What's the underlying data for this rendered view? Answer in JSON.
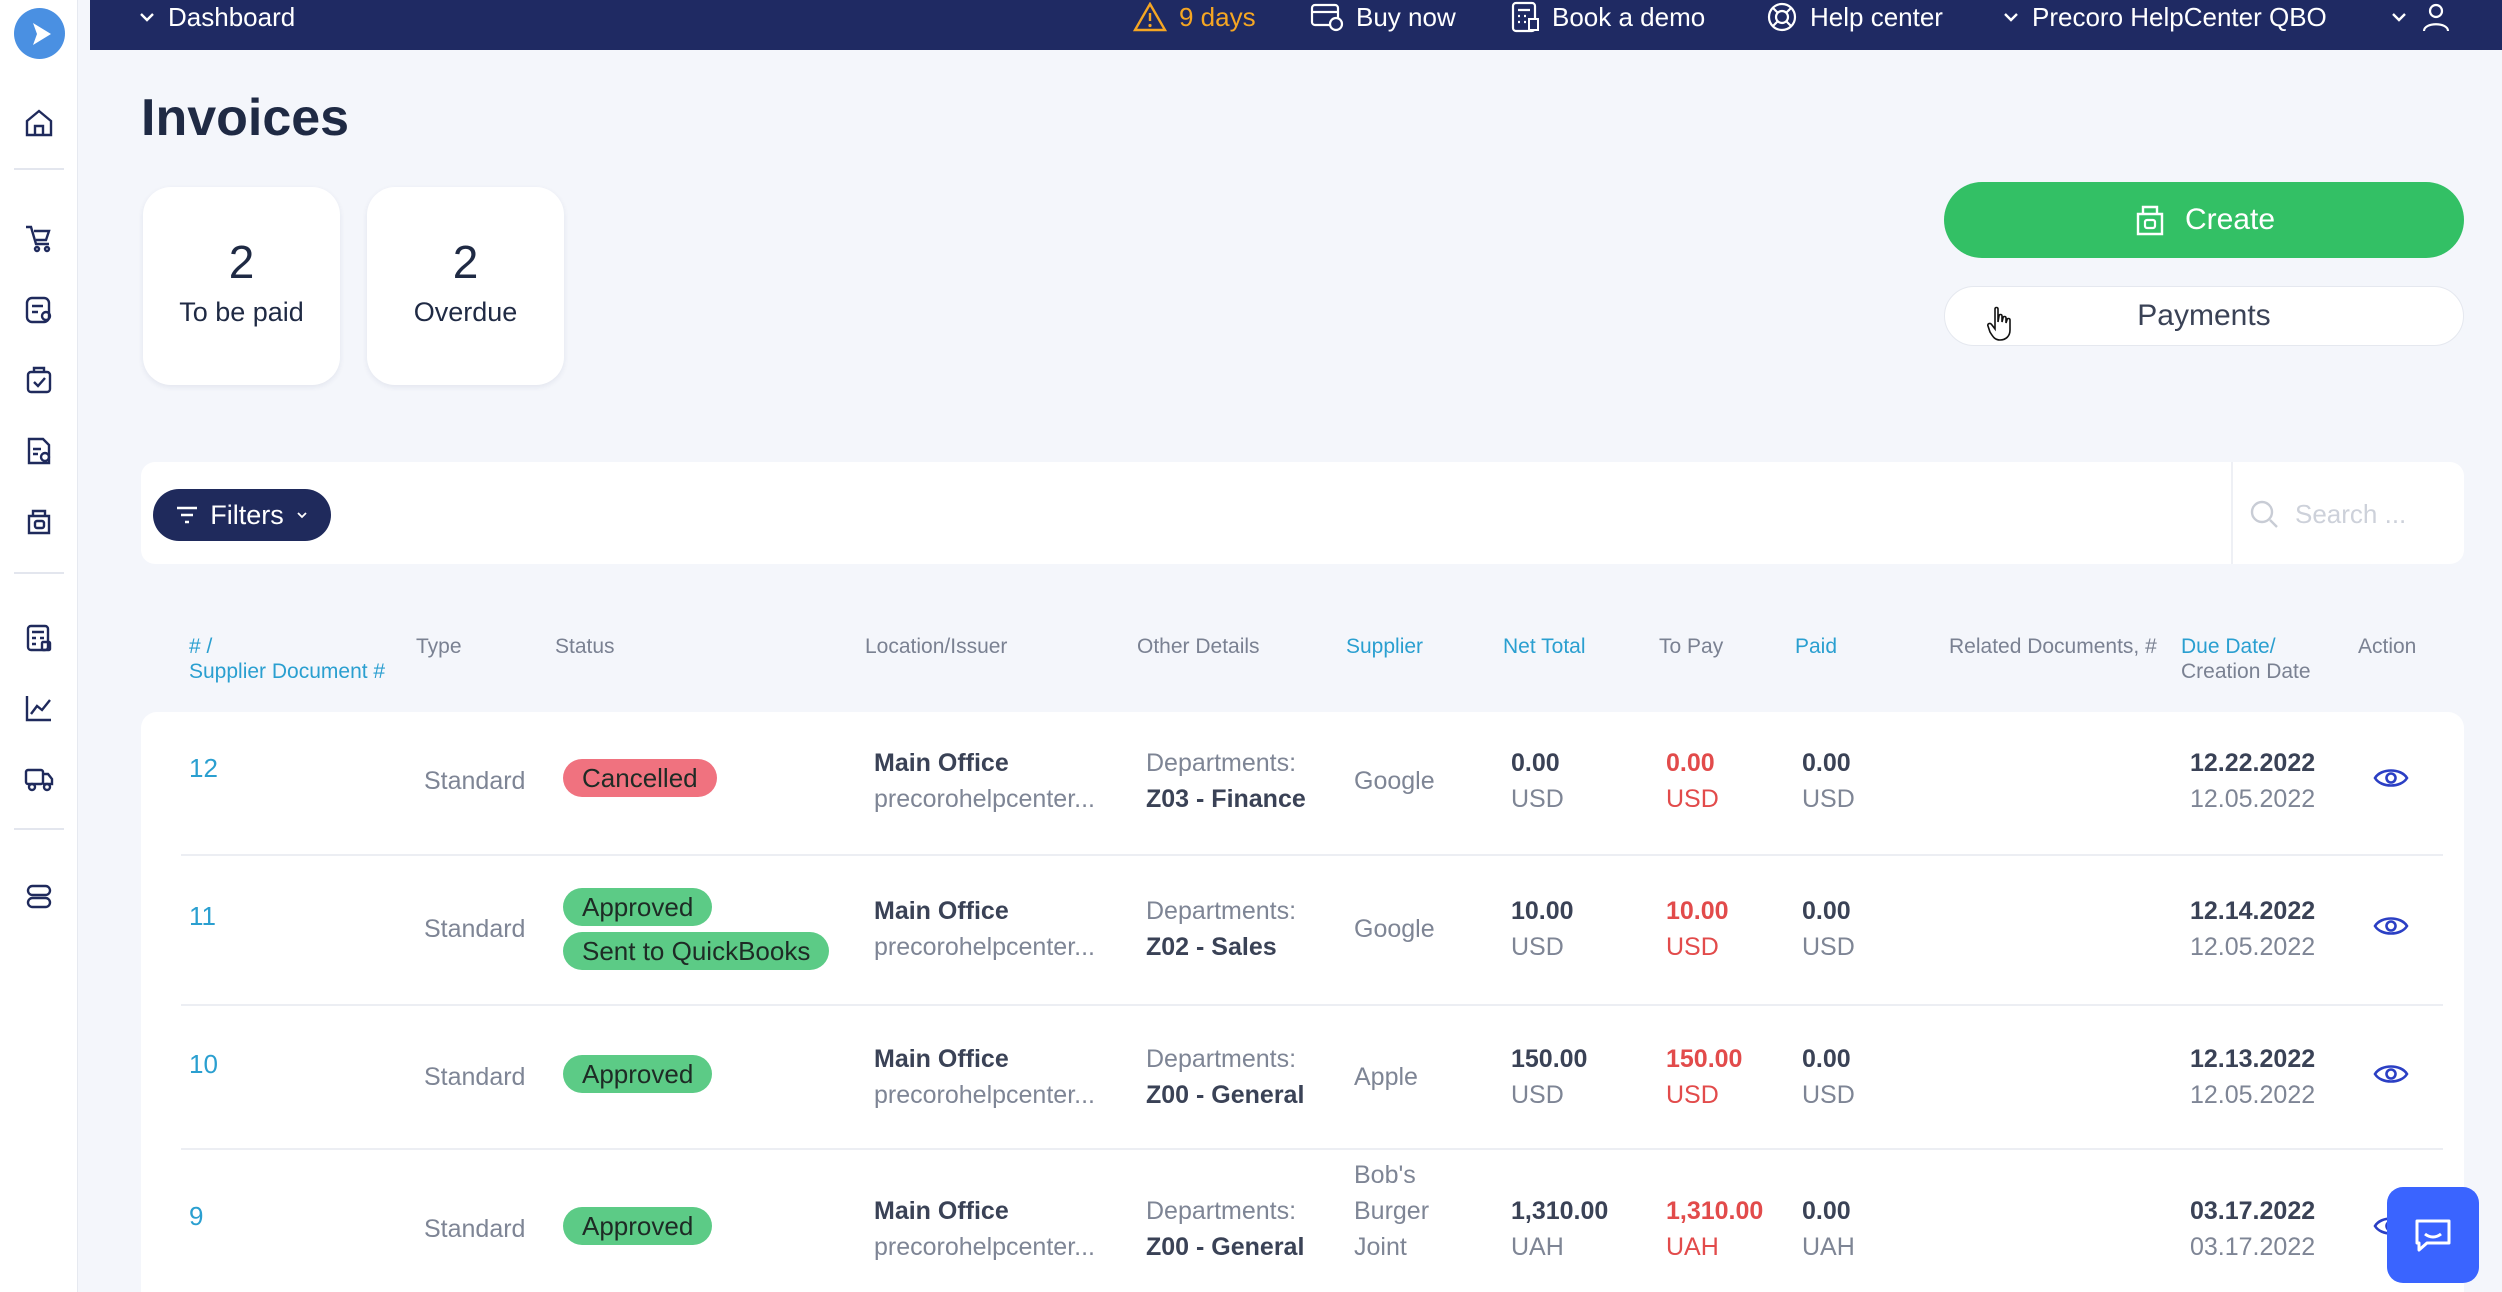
{
  "topbar": {
    "dashboard_label": "Dashboard",
    "trial_days": "9 days",
    "buy_now": "Buy now",
    "book_demo": "Book a demo",
    "help_center": "Help center",
    "company": "Precoro HelpCenter QBO"
  },
  "page": {
    "title": "Invoices"
  },
  "stats": [
    {
      "value": "2",
      "label": "To be paid"
    },
    {
      "value": "2",
      "label": "Overdue"
    }
  ],
  "actions": {
    "create": "Create",
    "payments": "Payments"
  },
  "filters": {
    "label": "Filters",
    "search_placeholder": "Search ..."
  },
  "table": {
    "headers": {
      "id_line1": "# /",
      "id_line2": "Supplier Document #",
      "type": "Type",
      "status": "Status",
      "location": "Location/Issuer",
      "other": "Other Details",
      "supplier": "Supplier",
      "net_total": "Net Total",
      "to_pay": "To Pay",
      "paid": "Paid",
      "related": "Related Documents, #",
      "due_line1": "Due Date/",
      "due_line2": "Creation Date",
      "action": "Action"
    },
    "rows": [
      {
        "id": "12",
        "type": "Standard",
        "status1": "Cancelled",
        "location": "Main Office",
        "issuer": "precorohelpcenter...",
        "dept_label": "Departments:",
        "dept": "Z03 - Finance",
        "supplier": "Google",
        "net": "0.00",
        "net_cur": "USD",
        "to_pay": "0.00",
        "to_pay_cur": "USD",
        "paid": "0.00",
        "paid_cur": "USD",
        "due": "12.22.2022",
        "created": "12.05.2022"
      },
      {
        "id": "11",
        "type": "Standard",
        "status1": "Approved",
        "status2": "Sent to QuickBooks",
        "location": "Main Office",
        "issuer": "precorohelpcenter...",
        "dept_label": "Departments:",
        "dept": "Z02 - Sales",
        "supplier": "Google",
        "net": "10.00",
        "net_cur": "USD",
        "to_pay": "10.00",
        "to_pay_cur": "USD",
        "paid": "0.00",
        "paid_cur": "USD",
        "due": "12.14.2022",
        "created": "12.05.2022"
      },
      {
        "id": "10",
        "type": "Standard",
        "status1": "Approved",
        "location": "Main Office",
        "issuer": "precorohelpcenter...",
        "dept_label": "Departments:",
        "dept": "Z00 - General",
        "supplier": "Apple",
        "net": "150.00",
        "net_cur": "USD",
        "to_pay": "150.00",
        "to_pay_cur": "USD",
        "paid": "0.00",
        "paid_cur": "USD",
        "due": "12.13.2022",
        "created": "12.05.2022"
      },
      {
        "id": "9",
        "type": "Standard",
        "status1": "Approved",
        "location": "Main Office",
        "issuer": "precorohelpcenter...",
        "dept_label": "Departments:",
        "dept": "Z00 - General",
        "supplier_l1": "Bob's",
        "supplier_l2": "Burger",
        "supplier_l3": "Joint",
        "net": "1,310.00",
        "net_cur": "UAH",
        "to_pay": "1,310.00",
        "to_pay_cur": "UAH",
        "paid": "0.00",
        "paid_cur": "UAH",
        "due": "03.17.2022",
        "created": "03.17.2022"
      }
    ]
  },
  "colors": {
    "topbar": "#1f2a63",
    "create_button": "#33c065",
    "cancelled": "#f0727f",
    "approved": "#5ccb86",
    "link": "#2a9fd0",
    "to_pay_text": "#e24b4b"
  },
  "icons": [
    "logo-icon",
    "home-icon",
    "cart-icon",
    "requests-icon",
    "approvals-icon",
    "receipts-icon",
    "invoices-icon",
    "budgets-icon",
    "analytics-icon",
    "delivery-icon",
    "integrations-icon",
    "warning-icon",
    "buy-icon",
    "calculator-icon",
    "lifebuoy-icon",
    "user-icon",
    "filter-icon",
    "search-icon",
    "eye-icon",
    "chat-icon"
  ]
}
